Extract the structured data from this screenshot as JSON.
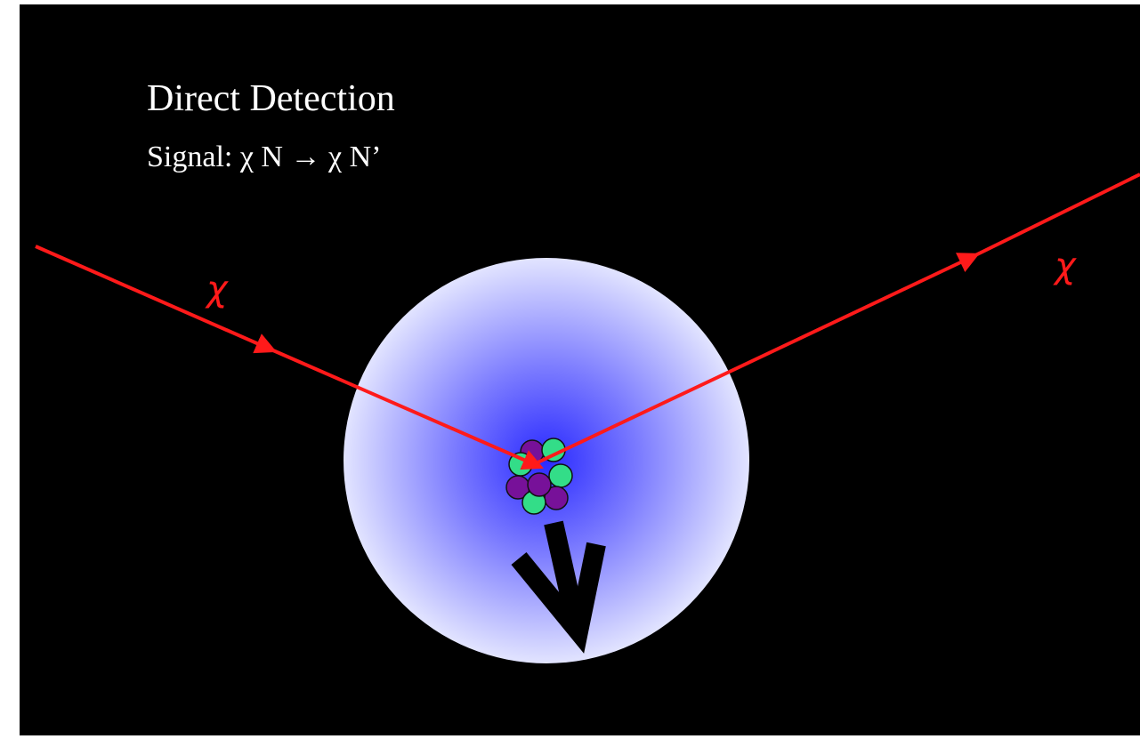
{
  "title": "Direct Detection",
  "signal": "Signal: χ N → χ N’",
  "labels": {
    "incoming": "χ",
    "outgoing": "χ"
  }
}
